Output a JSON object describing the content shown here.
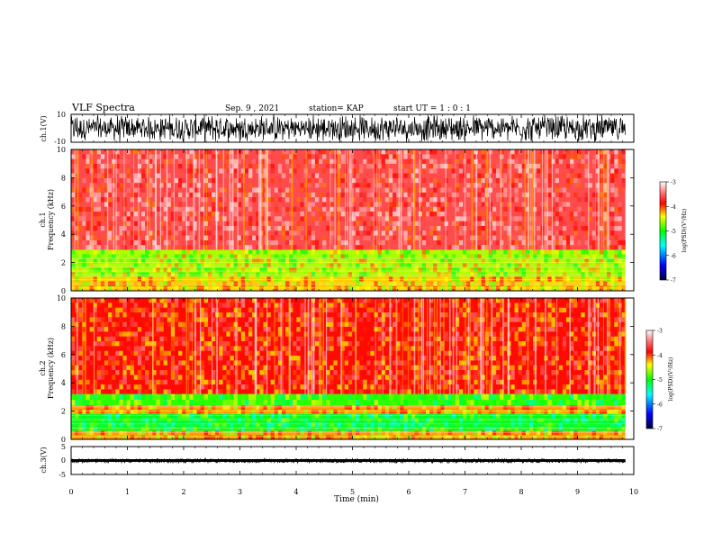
{
  "header": {
    "title": "VLF Spectra",
    "date": "Sep. 9 , 2021",
    "station": "station= KAP",
    "start": "start UT =  1 : 0  : 1"
  },
  "chart_data": [
    {
      "id": "ch1-waveform",
      "type": "line",
      "ylabel": "ch.1(V)",
      "ylim": [
        -10,
        10
      ],
      "y_ticks": [
        "10",
        "-10"
      ],
      "xlim": [
        0,
        10
      ],
      "color": "#000000"
    },
    {
      "id": "ch1-spectrogram",
      "type": "heatmap",
      "ylabel_lines": [
        "ch.1",
        "Frequency  (kHz)"
      ],
      "ylim": [
        0,
        10
      ],
      "y_ticks": [
        "0",
        "2",
        "4",
        "6",
        "8",
        "10"
      ],
      "xlim": [
        0,
        9.85
      ],
      "colorbar": {
        "label": "log(PSD)(V²/Hz)",
        "range": [
          -7,
          -3
        ],
        "ticks": [
          "-3",
          "-4",
          "-5",
          "-6",
          "-7"
        ]
      },
      "bands_khz": [
        {
          "from": 0.0,
          "to": 1.0,
          "level": -4.3
        },
        {
          "from": 1.0,
          "to": 2.9,
          "level": -4.6
        },
        {
          "from": 2.9,
          "to": 10.0,
          "level": -3.6
        }
      ]
    },
    {
      "id": "ch2-spectrogram",
      "type": "heatmap",
      "ylabel_lines": [
        "ch.2",
        "Frequency  (kHz)"
      ],
      "ylim": [
        0,
        10
      ],
      "y_ticks": [
        "0",
        "2",
        "4",
        "6",
        "8",
        "10"
      ],
      "xlim": [
        0,
        9.85
      ],
      "colorbar": {
        "label": "log(PSD)(V²/Hz)",
        "range": [
          -7,
          -3
        ],
        "ticks": [
          "-3",
          "-4",
          "-5",
          "-6",
          "-7"
        ]
      },
      "bands_khz": [
        {
          "from": 0.0,
          "to": 0.6,
          "level": -4.2
        },
        {
          "from": 0.6,
          "to": 1.8,
          "level": -5.1
        },
        {
          "from": 1.8,
          "to": 2.4,
          "level": -4.2
        },
        {
          "from": 2.4,
          "to": 3.2,
          "level": -4.9
        },
        {
          "from": 3.2,
          "to": 10.0,
          "level": -3.9
        }
      ]
    },
    {
      "id": "ch3-waveform",
      "type": "line",
      "ylabel": "ch.3(V)",
      "ylim": [
        -5,
        5
      ],
      "y_ticks": [
        "5",
        "0",
        "-5"
      ],
      "xlim": [
        0,
        10
      ],
      "color": "#000000"
    }
  ],
  "x_axis": {
    "label": "Time  (min)",
    "ticks": [
      "0",
      "1",
      "2",
      "3",
      "4",
      "5",
      "6",
      "7",
      "8",
      "9",
      "10"
    ]
  }
}
